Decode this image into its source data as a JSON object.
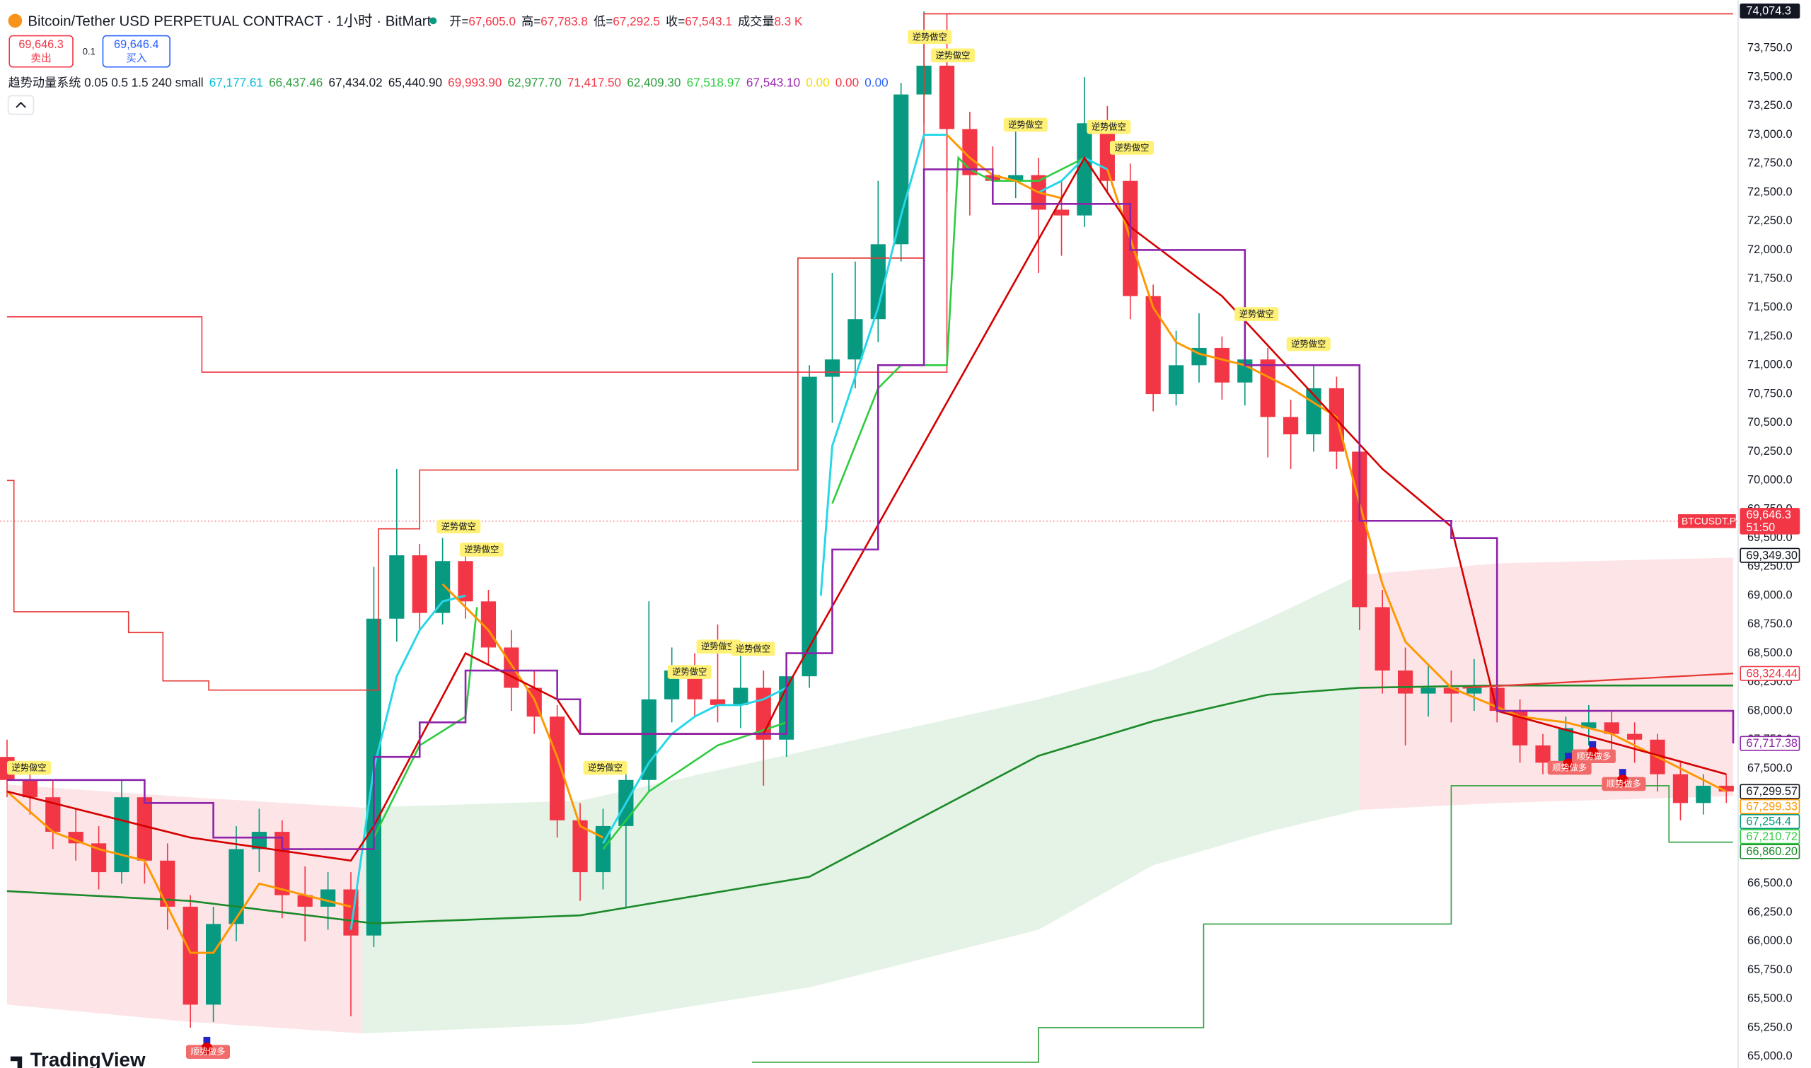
{
  "header": {
    "title": "Bitcoin/Tether USD PERPETUAL CONTRACT · 1小时 · BitMart",
    "ohlc": [
      {
        "label": "开=",
        "value": "67,605.0"
      },
      {
        "label": "高=",
        "value": "67,783.8"
      },
      {
        "label": "低=",
        "value": "67,292.5"
      },
      {
        "label": "收=",
        "value": "67,543.1"
      },
      {
        "label": "成交量",
        "value": "8.3 K"
      }
    ]
  },
  "trade": {
    "sell_price": "69,646.3",
    "sell": "卖出",
    "qty": "0.1",
    "buy_price": "69,646.4",
    "buy": "买入"
  },
  "indicator": {
    "name": "趋势动量系统 0.05 0.5 1.5 240 small",
    "values": [
      {
        "text": "67,177.61",
        "color": "#00bcd4"
      },
      {
        "text": "66,437.46",
        "color": "#2e9e3e"
      },
      {
        "text": "67,434.02",
        "color": "#131722"
      },
      {
        "text": "65,440.90",
        "color": "#131722"
      },
      {
        "text": "69,993.90",
        "color": "#f23645"
      },
      {
        "text": "62,977.70",
        "color": "#2e9e3e"
      },
      {
        "text": "71,417.50",
        "color": "#f23645"
      },
      {
        "text": "62,409.30",
        "color": "#2e9e3e"
      },
      {
        "text": "67,518.97",
        "color": "#2ecc40"
      },
      {
        "text": "67,543.10",
        "color": "#9c27b0"
      },
      {
        "text": "0.00",
        "color": "#f5d90a"
      },
      {
        "text": "0.00",
        "color": "#f23645"
      },
      {
        "text": "0.00",
        "color": "#2962ff"
      }
    ]
  },
  "logo": "TradingView",
  "chart_data": {
    "type": "candlestick",
    "up_color": "#089981",
    "down_color": "#f23645",
    "open": [
      67600,
      67400,
      67250,
      66950,
      66850,
      66600,
      67250,
      66700,
      66300,
      65450,
      66150,
      66800,
      66950,
      66400,
      66300,
      66450,
      66050,
      68800,
      69350,
      68850,
      69300,
      68950,
      68550,
      68200,
      67950,
      67050,
      66600,
      67000,
      67400,
      68100,
      68350,
      68100,
      68050,
      68200,
      67750,
      68300,
      70900,
      71050,
      71400,
      72050,
      73350,
      73600,
      73050,
      72650,
      72600,
      72650,
      72350,
      72300,
      73100,
      72600,
      71600,
      70750,
      71000,
      71150,
      70850,
      71050,
      70550,
      70400,
      70800,
      70250,
      68900,
      68350,
      68150,
      68200,
      68150,
      68200,
      68000,
      67700,
      67550,
      67850,
      67900,
      67800,
      67750,
      67450,
      67200,
      67350
    ],
    "high": [
      67750,
      67550,
      67400,
      67150,
      67000,
      67400,
      67350,
      66850,
      66400,
      66300,
      67000,
      67150,
      67050,
      66650,
      66600,
      66600,
      69250,
      70100,
      69450,
      69500,
      69450,
      69050,
      68700,
      68350,
      68050,
      67200,
      67150,
      67500,
      68950,
      68550,
      68500,
      68750,
      68600,
      68350,
      68500,
      71000,
      71800,
      71900,
      72600,
      73450,
      74070,
      73700,
      73200,
      72900,
      73100,
      72800,
      72600,
      73500,
      73250,
      72750,
      71700,
      71300,
      71450,
      71250,
      71300,
      71150,
      70700,
      71000,
      70900,
      70350,
      69050,
      68550,
      68400,
      68350,
      68450,
      68350,
      68100,
      67800,
      67950,
      68050,
      68000,
      67900,
      67800,
      67550,
      67450,
      67450
    ],
    "low": [
      67250,
      67100,
      66800,
      66700,
      66450,
      66500,
      66500,
      66100,
      65250,
      65300,
      66000,
      66600,
      66200,
      66000,
      66100,
      65350,
      65950,
      68600,
      68700,
      68750,
      68800,
      68400,
      68000,
      67800,
      66900,
      66350,
      66450,
      66300,
      67300,
      67900,
      67950,
      67900,
      67850,
      67350,
      67600,
      68200,
      70500,
      70800,
      71200,
      71900,
      73100,
      72500,
      72300,
      72400,
      72450,
      71800,
      71950,
      72200,
      72500,
      71400,
      70600,
      70650,
      70850,
      70700,
      70650,
      70200,
      70100,
      70250,
      70100,
      68700,
      68150,
      67700,
      67950,
      67900,
      68000,
      67900,
      67550,
      67450,
      67500,
      67700,
      67650,
      67550,
      67300,
      67050,
      67100,
      67200
    ],
    "close": [
      67400,
      67250,
      66950,
      66850,
      66600,
      67250,
      66700,
      66300,
      65450,
      66150,
      66800,
      66950,
      66400,
      66300,
      66450,
      66050,
      68800,
      69350,
      68850,
      69300,
      68950,
      68550,
      68200,
      67950,
      67050,
      66600,
      67000,
      67400,
      68100,
      68350,
      68100,
      68050,
      68200,
      67750,
      68300,
      70900,
      71050,
      71400,
      72050,
      73350,
      73600,
      73050,
      72650,
      72600,
      72650,
      72350,
      72300,
      73100,
      72600,
      71600,
      70750,
      71000,
      71150,
      70850,
      71050,
      70550,
      70400,
      70800,
      70250,
      68900,
      68350,
      68150,
      68200,
      68150,
      68200,
      68000,
      67700,
      67550,
      67850,
      67900,
      67800,
      67750,
      67450,
      67200,
      67350,
      67300
    ],
    "ylim": [
      64900,
      74170
    ],
    "yticks": [
      {
        "value": 65000,
        "label": "65,000.0"
      },
      {
        "value": 65250,
        "label": "65,250.0"
      },
      {
        "value": 65500,
        "label": "65,500.0"
      },
      {
        "value": 65750,
        "label": "65,750.0"
      },
      {
        "value": 66000,
        "label": "66,000.0"
      },
      {
        "value": 66250,
        "label": "66,250.0"
      },
      {
        "value": 66500,
        "label": "66,500.0"
      },
      {
        "value": 66750,
        "label": "66,750.0"
      },
      {
        "value": 67000,
        "label": "67,000.0"
      },
      {
        "value": 67250,
        "label": "67,250.0"
      },
      {
        "value": 67500,
        "label": "67,500.0"
      },
      {
        "value": 67750,
        "label": "67,750.0"
      },
      {
        "value": 68000,
        "label": "68,000.0"
      },
      {
        "value": 68250,
        "label": "68,250.0"
      },
      {
        "value": 68500,
        "label": "68,500.0"
      },
      {
        "value": 68750,
        "label": "68,750.0"
      },
      {
        "value": 69000,
        "label": "69,000.0"
      },
      {
        "value": 69250,
        "label": "69,250.0"
      },
      {
        "value": 69500,
        "label": "69,500.0"
      },
      {
        "value": 69750,
        "label": "69,750.0"
      },
      {
        "value": 70000,
        "label": "70,000.0"
      },
      {
        "value": 70250,
        "label": "70,250.0"
      },
      {
        "value": 70500,
        "label": "70,500.0"
      },
      {
        "value": 70750,
        "label": "70,750.0"
      },
      {
        "value": 71000,
        "label": "71,000.0"
      },
      {
        "value": 71250,
        "label": "71,250.0"
      },
      {
        "value": 71500,
        "label": "71,500.0"
      },
      {
        "value": 71750,
        "label": "71,750.0"
      },
      {
        "value": 72000,
        "label": "72,000.0"
      },
      {
        "value": 72250,
        "label": "72,250.0"
      },
      {
        "value": 72500,
        "label": "72,500.0"
      },
      {
        "value": 72750,
        "label": "72,750.0"
      },
      {
        "value": 73000,
        "label": "73,000.0"
      },
      {
        "value": 73250,
        "label": "73,250.0"
      },
      {
        "value": 73500,
        "label": "73,500.0"
      },
      {
        "value": 73750,
        "label": "73,750.0"
      }
    ],
    "grid": false,
    "bands": [
      {
        "color": "rgba(242,54,69,0.13)",
        "x": [
          0,
          8,
          15.5
        ],
        "upper": [
          67360,
          67250,
          67160
        ],
        "lower": [
          65450,
          65300,
          65200
        ]
      },
      {
        "color": "rgba(76,175,80,0.15)",
        "x": [
          15.5,
          25,
          35,
          45,
          50,
          55,
          59
        ],
        "upper": [
          67160,
          67220,
          67660,
          68100,
          68360,
          68800,
          69180
        ],
        "lower": [
          65200,
          65280,
          65600,
          66100,
          66660,
          66950,
          67140
        ]
      },
      {
        "color": "rgba(242,54,69,0.13)",
        "x": [
          59,
          65,
          75.3
        ],
        "upper": [
          69180,
          69280,
          69330
        ],
        "lower": [
          67140,
          67200,
          67260
        ]
      }
    ],
    "lines": [
      {
        "color": "#1b8a2a",
        "width": 1.6,
        "step": false,
        "x": [
          0,
          8,
          16,
          25,
          35,
          45,
          50,
          55,
          59,
          65,
          75.3
        ],
        "values": [
          66435,
          66350,
          66155,
          66225,
          66560,
          67610,
          67910,
          68140,
          68200,
          68220,
          68220
        ]
      },
      {
        "color": "#f23645",
        "width": 1,
        "step": true,
        "x": [
          0,
          8.5,
          41,
          41.2
        ],
        "values": [
          71420,
          70940,
          74050,
          74050
        ]
      },
      {
        "color": "#e53935",
        "width": 1,
        "step": true,
        "x": [
          0,
          0.3,
          5.3,
          6.8,
          8.8,
          16.2,
          18,
          34.5,
          37,
          40,
          75.3
        ],
        "values": [
          70000,
          68860,
          68680,
          68260,
          68180,
          69580,
          70090,
          71930,
          71930,
          74050,
          74050
        ]
      },
      {
        "color": "#2e9e3e",
        "width": 1,
        "step": true,
        "x": [
          32.5,
          45,
          52.2,
          63,
          72.5,
          75.3
        ],
        "values": [
          64950,
          65250,
          66150,
          67350,
          66860,
          66860
        ]
      },
      {
        "color": "#2ecc40",
        "width": 1.6,
        "step": false,
        "x": [
          16,
          18,
          20,
          20.5,
          21,
          26,
          28,
          31,
          34,
          35,
          36,
          37,
          38,
          39,
          41,
          41.5,
          42,
          43,
          45,
          47
        ],
        "values": [
          66900,
          67700,
          67950,
          68900,
          null,
          66800,
          67300,
          67700,
          67900,
          null,
          69800,
          70300,
          70800,
          71000,
          71000,
          72800,
          72700,
          72600,
          72600,
          72800
        ]
      },
      {
        "color": "#26d7e8",
        "width": 1.8,
        "step": false,
        "x": [
          15,
          16,
          17,
          18,
          19,
          20,
          21,
          26,
          27,
          28,
          29,
          30,
          31,
          32,
          33,
          34,
          35,
          35.5,
          36,
          37,
          38,
          39,
          40,
          41,
          42,
          45,
          46,
          47,
          48
        ],
        "values": [
          66100,
          67500,
          68300,
          68700,
          68950,
          69000,
          null,
          66850,
          67200,
          67550,
          67800,
          67950,
          68050,
          68050,
          68100,
          68200,
          null,
          69000,
          70300,
          70900,
          71500,
          72300,
          73000,
          73000,
          null,
          72500,
          72600,
          72800,
          72700
        ]
      },
      {
        "color": "#ff9800",
        "width": 1.8,
        "step": false,
        "x": [
          0,
          2,
          4,
          6,
          8,
          9,
          11,
          13,
          15,
          16,
          19,
          21,
          22,
          23,
          24,
          25,
          26,
          27,
          41,
          42,
          43,
          44,
          45,
          46,
          47,
          48,
          49,
          50,
          51,
          52,
          54,
          56,
          58,
          59,
          60,
          61,
          63,
          66,
          68,
          70,
          72,
          74,
          75
        ],
        "values": [
          67300,
          66950,
          66800,
          66700,
          65900,
          65900,
          66500,
          66400,
          66300,
          null,
          69100,
          68700,
          68400,
          68100,
          67600,
          67000,
          66900,
          null,
          73000,
          72800,
          72650,
          72600,
          72500,
          72450,
          null,
          72700,
          72100,
          71500,
          71200,
          71100,
          71000,
          70800,
          70550,
          69800,
          69100,
          68600,
          68200,
          67950,
          67900,
          67800,
          67600,
          67400,
          67299.33
        ]
      },
      {
        "color": "#d50000",
        "width": 1.6,
        "step": false,
        "x": [
          0,
          8,
          15,
          16,
          20,
          24,
          25,
          33,
          34,
          47,
          49,
          53,
          60,
          63,
          65,
          75
        ],
        "values": [
          67300,
          66900,
          66700,
          67000,
          68500,
          68100,
          67800,
          67800,
          68200,
          72800,
          72200,
          71600,
          70100,
          69600,
          68000,
          67450
        ]
      },
      {
        "color": "#8e24aa",
        "width": 1.6,
        "step": true,
        "x": [
          0,
          6,
          9,
          12,
          16,
          18,
          20,
          24,
          25,
          33,
          34,
          36,
          38,
          40,
          43,
          49,
          54,
          59,
          63,
          65,
          75.3
        ],
        "values": [
          67400,
          67200,
          66900,
          66800,
          67600,
          67900,
          68350,
          68100,
          67800,
          67800,
          68500,
          69400,
          71000,
          72700,
          72400,
          72000,
          71000,
          69650,
          69500,
          68000,
          67717.38
        ]
      },
      {
        "color": "#e53935",
        "width": 1.4,
        "step": false,
        "x": [
          63.5,
          75.3
        ],
        "values": [
          68200,
          68324.44
        ]
      }
    ],
    "price_labels": [
      {
        "value": 74074.3,
        "label": "74,074.3",
        "bg": "#131722",
        "fg": "#ffffff"
      },
      {
        "value": 69646.3,
        "label": "69,646.3",
        "bg": "#f23645",
        "fg": "#ffffff",
        "countdown": "51:50",
        "tag": "BTCUSDT.P"
      },
      {
        "value": 69349.3,
        "label": "69,349.30",
        "bg": "#ffffff",
        "fg": "#131722"
      },
      {
        "value": 68324.44,
        "label": "68,324.44",
        "bg": "#ffffff",
        "fg": "#f23645"
      },
      {
        "value": 67717.38,
        "label": "67,717.38",
        "bg": "#ffffff",
        "fg": "#8e24aa"
      },
      {
        "value": 67299.57,
        "label": "67,299.57",
        "bg": "#ffffff",
        "fg": "#131722"
      },
      {
        "value": 67299.33,
        "label": "67,299.33",
        "bg": "#ffffff",
        "fg": "#ff9800"
      },
      {
        "value": 67254.4,
        "label": "67,254.4",
        "bg": "#ffffff",
        "fg": "#089981"
      },
      {
        "value": 67210.72,
        "label": "67,210.72",
        "bg": "#ffffff",
        "fg": "#2ecc40"
      },
      {
        "value": 66860.2,
        "label": "66,860.20",
        "bg": "#ffffff",
        "fg": "#1b8a2a"
      }
    ],
    "annotations": [
      "逆势做空",
      "逆势做空",
      "逆势做空",
      "逆势做空",
      "逆势做空",
      "逆势做空",
      "逆势做空",
      "逆势做空",
      "逆势做空",
      "逆势做空",
      "逆势做空",
      "逆势做空",
      "逆势做空",
      "逆势做空",
      "顺势做多",
      "顺势做多",
      "顺势做多",
      "顺势做多"
    ]
  }
}
